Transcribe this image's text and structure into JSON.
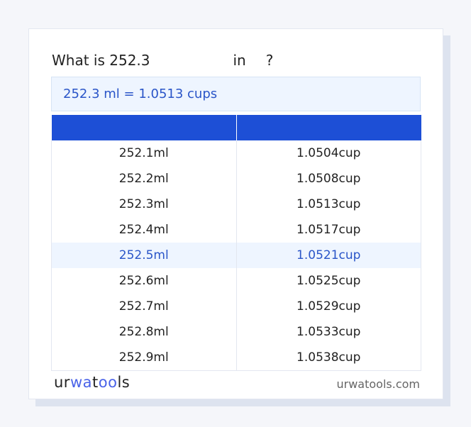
{
  "question": {
    "prefix": "What is 252.3",
    "mid": "in",
    "suffix": "?"
  },
  "result": "252.3 ml = 1.0513 cups",
  "table": {
    "headers": [
      "",
      ""
    ],
    "rows": [
      [
        "252.1ml",
        "1.0504cup"
      ],
      [
        "252.2ml",
        "1.0508cup"
      ],
      [
        "252.3ml",
        "1.0513cup"
      ],
      [
        "252.4ml",
        "1.0517cup"
      ],
      [
        "252.5ml",
        "1.0521cup"
      ],
      [
        "252.6ml",
        "1.0525cup"
      ],
      [
        "252.7ml",
        "1.0529cup"
      ],
      [
        "252.8ml",
        "1.0533cup"
      ],
      [
        "252.9ml",
        "1.0538cup"
      ]
    ],
    "highlighted_row": 4
  },
  "footer": {
    "logo": "urwatools",
    "site": "urwatools.com"
  },
  "colors": {
    "accent": "#1d4fd6",
    "highlight_bg": "#eef5ff",
    "highlight_text": "#2a55c8"
  }
}
